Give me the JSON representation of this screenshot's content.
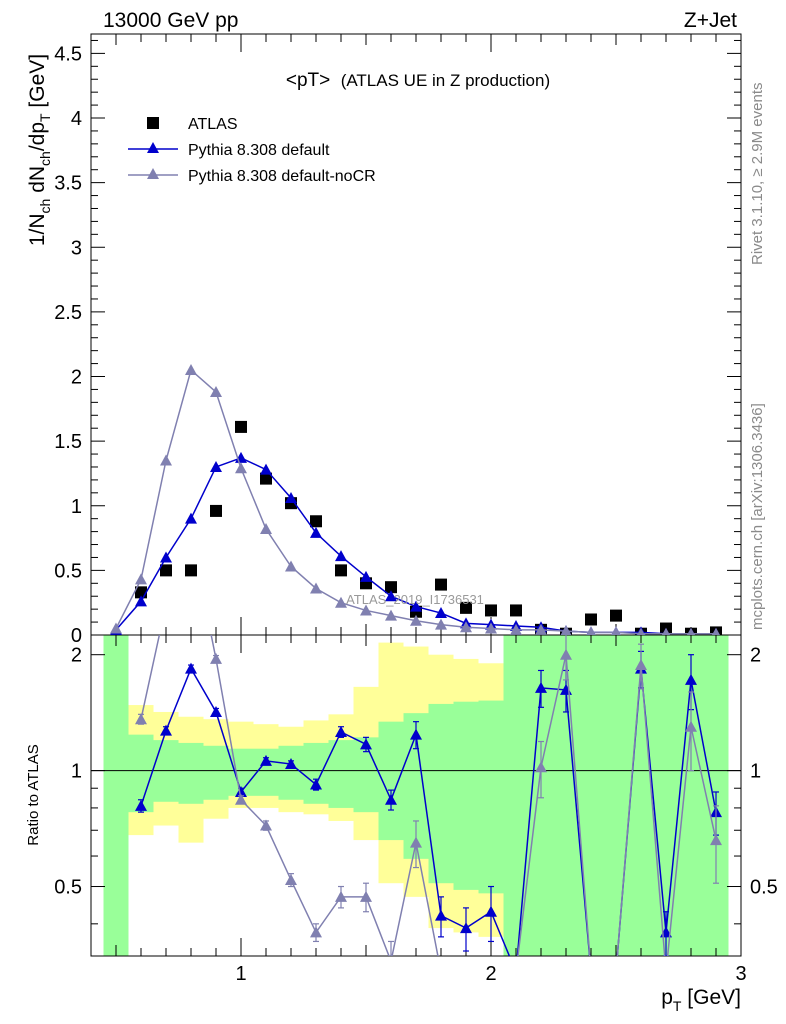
{
  "header": {
    "left_label": "13000 GeV pp",
    "right_label": "Z+Jet"
  },
  "side_labels": {
    "rivet": "Rivet 3.1.10, ≥ 2.9M events",
    "mcplots": "mcplots.cern.ch [arXiv:1306.3436]"
  },
  "watermark": "ATLAS_2019_I1736531",
  "colors": {
    "data": "#000000",
    "pythia_default": "#0000cc",
    "pythia_nocr": "#8080b0",
    "band_inner": "#99ff99",
    "band_outer": "#ffff99",
    "ratio_line": "#000000"
  },
  "chart_data": [
    {
      "type": "scatter",
      "panel": "main",
      "title": "<pT>",
      "subtitle": "(ATLAS UE in Z production)",
      "xlabel": "p_T [GeV]",
      "ylabel": "1/N_ch dN_ch/dp_T [GeV]",
      "xlim": [
        0.4,
        3.0
      ],
      "ylim": [
        0,
        4.65
      ],
      "yticks": [
        0,
        0.5,
        1,
        1.5,
        2,
        2.5,
        3,
        3.5,
        4,
        4.5
      ],
      "legend_position": "top-left",
      "series": [
        {
          "name": "ATLAS",
          "marker": "square",
          "x": [
            0.6,
            0.7,
            0.8,
            0.9,
            1.0,
            1.1,
            1.2,
            1.3,
            1.4,
            1.5,
            1.6,
            1.7,
            1.8,
            1.9,
            2.0,
            2.1,
            2.2,
            2.3,
            2.4,
            2.5,
            2.6,
            2.7,
            2.8,
            2.9
          ],
          "y": [
            0.33,
            0.5,
            0.5,
            0.96,
            1.61,
            1.21,
            1.02,
            0.88,
            0.5,
            0.4,
            0.37,
            0.18,
            0.39,
            0.21,
            0.19,
            0.19,
            0.04,
            0.01,
            0.12,
            0.15,
            0.01,
            0.05,
            0.01,
            0.02
          ]
        },
        {
          "name": "Pythia 8.308 default",
          "marker": "triangle",
          "x": [
            0.5,
            0.6,
            0.7,
            0.8,
            0.9,
            1.0,
            1.1,
            1.2,
            1.3,
            1.4,
            1.5,
            1.6,
            1.7,
            1.8,
            1.9,
            2.0,
            2.1,
            2.2,
            2.3,
            2.4,
            2.5,
            2.6,
            2.7,
            2.8,
            2.9
          ],
          "y": [
            0.04,
            0.26,
            0.6,
            0.9,
            1.3,
            1.37,
            1.28,
            1.06,
            0.79,
            0.61,
            0.45,
            0.3,
            0.22,
            0.17,
            0.09,
            0.08,
            0.07,
            0.06,
            0.03,
            0.02,
            0.02,
            0.02,
            0.01,
            0.01,
            0.01
          ]
        },
        {
          "name": "Pythia 8.308 default-noCR",
          "marker": "triangle",
          "x": [
            0.5,
            0.6,
            0.7,
            0.8,
            0.9,
            1.0,
            1.1,
            1.2,
            1.3,
            1.4,
            1.5,
            1.6,
            1.7,
            1.8,
            1.9,
            2.0,
            2.1,
            2.2,
            2.3,
            2.4,
            2.5,
            2.6,
            2.7,
            2.8,
            2.9
          ],
          "y": [
            0.05,
            0.43,
            1.35,
            2.05,
            1.88,
            1.29,
            0.82,
            0.53,
            0.36,
            0.25,
            0.19,
            0.15,
            0.11,
            0.08,
            0.06,
            0.05,
            0.04,
            0.04,
            0.03,
            0.02,
            0.02,
            0.01,
            0.01,
            0.01,
            0.01
          ]
        }
      ]
    },
    {
      "type": "line",
      "panel": "ratio",
      "xlabel": "p_T [GeV]",
      "ylabel": "Ratio to ATLAS",
      "xlim": [
        0.4,
        3.0
      ],
      "ylim": [
        0.33,
        2.25
      ],
      "yticks": [
        0.5,
        1,
        2
      ],
      "xticks": [
        1,
        2,
        3
      ],
      "reference_line": 1,
      "bands": {
        "x_edges": [
          0.45,
          0.55,
          0.65,
          0.75,
          0.85,
          0.95,
          1.05,
          1.15,
          1.25,
          1.35,
          1.45,
          1.55,
          1.65,
          1.75,
          1.85,
          1.95,
          2.05,
          2.15,
          2.25,
          2.35,
          2.45,
          2.55,
          2.65,
          2.75,
          2.85,
          2.95
        ],
        "inner_low": [
          0.33,
          0.78,
          0.83,
          0.82,
          0.84,
          0.86,
          0.86,
          0.84,
          0.82,
          0.8,
          0.78,
          0.66,
          0.59,
          0.51,
          0.49,
          0.48,
          0.33,
          0.33,
          0.33,
          0.33,
          0.33,
          0.33,
          0.33,
          0.33,
          0.33
        ],
        "inner_high": [
          2.25,
          1.24,
          1.2,
          1.18,
          1.16,
          1.14,
          1.14,
          1.16,
          1.18,
          1.2,
          1.22,
          1.34,
          1.41,
          1.49,
          1.51,
          1.52,
          2.25,
          2.25,
          2.25,
          2.25,
          2.25,
          2.25,
          2.25,
          2.25,
          2.25
        ],
        "outer_low": [
          0.33,
          0.68,
          0.72,
          0.65,
          0.75,
          0.8,
          0.8,
          0.78,
          0.77,
          0.74,
          0.66,
          0.51,
          0.47,
          0.39,
          0.38,
          0.37,
          0.33,
          0.33,
          0.33,
          0.33,
          0.33,
          0.33,
          0.33,
          0.33,
          0.33
        ],
        "outer_high": [
          2.25,
          1.48,
          1.42,
          1.38,
          1.36,
          1.34,
          1.32,
          1.3,
          1.35,
          1.4,
          1.65,
          2.15,
          2.1,
          2.0,
          1.95,
          1.9,
          2.25,
          2.25,
          2.25,
          2.25,
          2.25,
          2.25,
          2.25,
          2.25,
          2.25
        ]
      },
      "series": [
        {
          "name": "Pythia 8.308 default",
          "x": [
            0.6,
            0.7,
            0.8,
            0.9,
            1.0,
            1.1,
            1.2,
            1.3,
            1.4,
            1.5,
            1.6,
            1.7,
            1.8,
            1.9,
            2.0,
            2.1,
            2.2,
            2.3,
            2.4,
            2.5,
            2.6,
            2.7,
            2.8,
            2.9
          ],
          "y": [
            0.81,
            1.27,
            1.84,
            1.42,
            0.88,
            1.06,
            1.04,
            0.92,
            1.26,
            1.17,
            0.84,
            1.24,
            0.42,
            0.39,
            0.43,
            0.3,
            1.64,
            1.62,
            0.3,
            0.3,
            1.84,
            0.38,
            1.72,
            0.78
          ],
          "err": [
            0.03,
            0.03,
            0.04,
            0.03,
            0.02,
            0.02,
            0.02,
            0.03,
            0.04,
            0.05,
            0.05,
            0.1,
            0.05,
            0.05,
            0.07,
            0.0,
            0.18,
            0.2,
            0.0,
            0.0,
            0.2,
            0.05,
            0.28,
            0.1
          ]
        },
        {
          "name": "Pythia 8.308 default-noCR",
          "x": [
            0.6,
            0.7,
            0.8,
            0.9,
            1.0,
            1.1,
            1.2,
            1.3,
            1.4,
            1.5,
            1.6,
            1.7,
            1.8,
            1.9,
            2.0,
            2.1,
            2.2,
            2.3,
            2.4,
            2.5,
            2.6,
            2.7,
            2.8,
            2.9
          ],
          "y": [
            1.36,
            2.7,
            4.1,
            1.95,
            0.84,
            0.72,
            0.52,
            0.38,
            0.47,
            0.47,
            0.32,
            0.65,
            0.3,
            0.3,
            0.3,
            0.3,
            1.02,
            2.0,
            0.3,
            0.3,
            1.88,
            0.3,
            1.3,
            0.66
          ],
          "err": [
            0.04,
            0.05,
            0.06,
            0.04,
            0.02,
            0.02,
            0.02,
            0.02,
            0.03,
            0.04,
            0.04,
            0.09,
            0.0,
            0.0,
            0.0,
            0.0,
            0.17,
            0.28,
            0.0,
            0.0,
            0.25,
            0.0,
            0.3,
            0.15
          ]
        }
      ]
    }
  ]
}
